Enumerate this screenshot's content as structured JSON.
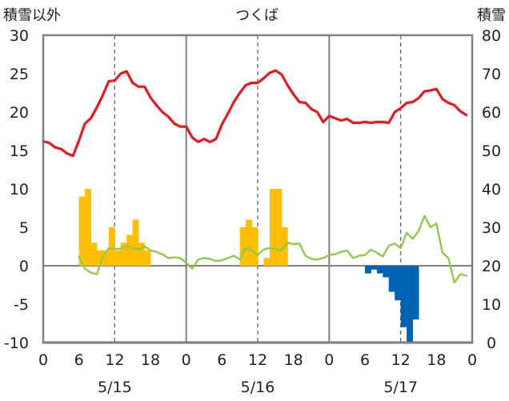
{
  "chart_data": {
    "type": "line",
    "title": "つくば",
    "left_axis_title": "積雪以外",
    "right_axis_title": "積雪",
    "left_ylim": [
      -10,
      30
    ],
    "left_yticks": [
      "30",
      "25",
      "20",
      "15",
      "10",
      "5",
      "0",
      "-5",
      "-10"
    ],
    "right_ylim": [
      0,
      80
    ],
    "right_yticks": [
      "80",
      "70",
      "60",
      "50",
      "40",
      "30",
      "20",
      "10",
      "0"
    ],
    "x_range_hours": [
      0,
      72
    ],
    "x_tick_labels": [
      "0",
      "6",
      "12",
      "18",
      "0",
      "6",
      "12",
      "18",
      "0",
      "6",
      "12",
      "18",
      "0"
    ],
    "date_labels": [
      "5/15",
      "5/16",
      "5/17"
    ],
    "grid": "dashed at 12h, solid at day boundaries",
    "colors": {
      "temperature": "#e8191f",
      "precipitation": "#ffbf00",
      "wind": "#8fcb4a",
      "snow_change": "#0064b4",
      "snow_depth": "#6a3aa0",
      "frame": "#808080",
      "dashed_grid": "#666666"
    },
    "series": [
      {
        "key": "temperature",
        "axis": "left",
        "kind": "line",
        "x": [
          0,
          1,
          2,
          3,
          4,
          5,
          6,
          7,
          8,
          9,
          10,
          11,
          12,
          13,
          14,
          15,
          16,
          17,
          18,
          19,
          20,
          21,
          22,
          23,
          24,
          25,
          26,
          27,
          28,
          29,
          30,
          31,
          32,
          33,
          34,
          35,
          36,
          37,
          38,
          39,
          40,
          41,
          42,
          43,
          44,
          45,
          46,
          47,
          48,
          49,
          50,
          51,
          52,
          53,
          54,
          55,
          56,
          57,
          58,
          59,
          60,
          61,
          62,
          63,
          64,
          65,
          66,
          67,
          68,
          69,
          70,
          71
        ],
        "values": [
          16.2,
          16,
          15.4,
          15.2,
          14.6,
          14.3,
          16.3,
          18.5,
          19.2,
          20.6,
          22.2,
          24,
          24.1,
          25,
          25.3,
          23.8,
          23.3,
          23.3,
          21.9,
          20.9,
          20,
          19.4,
          18.5,
          18.1,
          18.1,
          16.7,
          16.1,
          16.5,
          16.1,
          16.5,
          18.4,
          19.8,
          21.3,
          22.5,
          23.5,
          23.8,
          23.8,
          24.4,
          25.1,
          25.4,
          24.9,
          23.5,
          22.3,
          21.3,
          21.2,
          20.4,
          20,
          18.7,
          19.5,
          19.2,
          18.9,
          19.1,
          18.6,
          18.6,
          18.7,
          18.6,
          18.7,
          18.7,
          18.6,
          20,
          20.5,
          21.2,
          21.3,
          21.8,
          22.7,
          22.8,
          23,
          21.7,
          21.2,
          20.9,
          20.1,
          19.6
        ]
      },
      {
        "key": "precipitation",
        "axis": "left",
        "kind": "bar",
        "x": [
          6,
          7,
          8,
          9,
          10,
          11,
          12,
          13,
          14,
          15,
          16,
          17,
          33,
          34,
          35,
          37,
          38,
          39,
          40
        ],
        "values": [
          9,
          10,
          3,
          2,
          2,
          5,
          2,
          3,
          4,
          6,
          3,
          2,
          5,
          6,
          5,
          1,
          10,
          10,
          5
        ]
      },
      {
        "key": "wind",
        "axis": "left",
        "kind": "line",
        "x": [
          6,
          7,
          8,
          9,
          10,
          11,
          12,
          13,
          14,
          15,
          16,
          17,
          18,
          19,
          20,
          21,
          22,
          23,
          24,
          25,
          26,
          27,
          28,
          29,
          30,
          31,
          32,
          33,
          34,
          35,
          36,
          37,
          38,
          39,
          40,
          41,
          42,
          43,
          44,
          45,
          46,
          47,
          48,
          49,
          50,
          51,
          52,
          53,
          54,
          55,
          56,
          57,
          58,
          59,
          60,
          61,
          62,
          63,
          64,
          65,
          66,
          67,
          68,
          69,
          70,
          71
        ],
        "values": [
          1.2,
          -0.4,
          -0.9,
          -1.1,
          1.2,
          2.3,
          2.2,
          2.2,
          2.6,
          2.3,
          2.1,
          2.5,
          2,
          1.8,
          1.5,
          1,
          1.1,
          1,
          0.4,
          -0.4,
          0.8,
          1,
          0.9,
          0.6,
          0.7,
          1,
          1.3,
          0.8,
          2.3,
          2,
          1.4,
          2.1,
          2.3,
          2.2,
          2,
          3,
          2.8,
          2.9,
          1.3,
          0.9,
          0.8,
          1,
          1.4,
          1.5,
          1.8,
          2,
          1,
          1.3,
          1.4,
          2.1,
          1.7,
          1.2,
          2.6,
          2.9,
          2.3,
          4.3,
          3.5,
          4.5,
          6.5,
          5,
          5.5,
          1.7,
          1,
          -2.2,
          -1.1,
          -1.3
        ]
      },
      {
        "key": "snow_change",
        "axis": "left",
        "kind": "bar",
        "x": [
          54,
          55,
          56,
          57,
          58,
          59,
          60,
          61,
          62
        ],
        "values": [
          -1,
          -0.5,
          -1,
          -1.5,
          -3.4,
          -4.5,
          -8,
          -10,
          -7
        ]
      },
      {
        "key": "snow_depth",
        "axis": "right",
        "kind": "line",
        "x": [
          0,
          72
        ],
        "values": [
          0,
          0
        ]
      }
    ]
  }
}
